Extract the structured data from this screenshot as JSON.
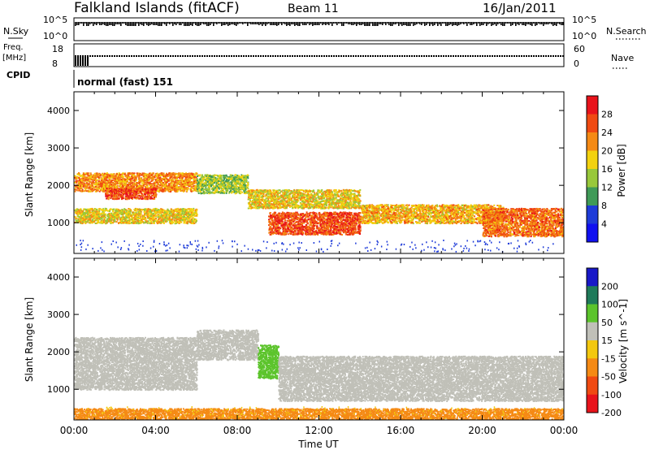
{
  "header": {
    "station": "Falkland Islands (fitACF)",
    "beam": "Beam 11",
    "date": "16/Jan/2011"
  },
  "panels": {
    "nsky": {
      "left_label": "N.Sky",
      "right_label": "N.Search",
      "left_ticks": [
        "10^5",
        "10^0"
      ],
      "right_ticks": [
        "10^5",
        "10^0"
      ]
    },
    "freq": {
      "left_label_1": "Freq.",
      "left_label_2": "[MHz]",
      "right_label": "Nave",
      "left_ticks": [
        "18",
        "8"
      ],
      "right_ticks": [
        "60",
        "0"
      ]
    },
    "cpid": {
      "label": "CPID",
      "text": "normal (fast) 151"
    }
  },
  "chart_data": [
    {
      "type": "heatmap",
      "name": "power",
      "xlabel": "",
      "ylabel": "Slant Range [km]",
      "xlim": [
        "00:00",
        "24:00"
      ],
      "ylim": [
        180,
        4500
      ],
      "yticks": [
        1000,
        2000,
        3000,
        4000
      ],
      "colorbar": {
        "label": "Power [dB]",
        "ticks": [
          28,
          24,
          20,
          16,
          12,
          8,
          4
        ],
        "colors": [
          "#e8131b",
          "#f04a12",
          "#f58a14",
          "#f3d20f",
          "#98c83a",
          "#3f9a57",
          "#1e3bd8",
          "#1010f0"
        ]
      },
      "bands": [
        {
          "time_start": "00:00",
          "time_end": "06:00",
          "range_start": 1850,
          "range_end": 2350,
          "power_db": 22
        },
        {
          "time_start": "01:30",
          "time_end": "04:00",
          "range_start": 1650,
          "range_end": 1950,
          "power_db": 26
        },
        {
          "time_start": "00:00",
          "time_end": "06:00",
          "range_start": 1000,
          "range_end": 1400,
          "power_db": 18
        },
        {
          "time_start": "06:00",
          "time_end": "08:30",
          "range_start": 1800,
          "range_end": 2300,
          "power_db": 14
        },
        {
          "time_start": "08:30",
          "time_end": "14:00",
          "range_start": 1400,
          "range_end": 1900,
          "power_db": 18
        },
        {
          "time_start": "09:30",
          "time_end": "14:00",
          "range_start": 700,
          "range_end": 1300,
          "power_db": 26
        },
        {
          "time_start": "14:00",
          "time_end": "21:00",
          "range_start": 1000,
          "range_end": 1500,
          "power_db": 20
        },
        {
          "time_start": "20:00",
          "time_end": "24:00",
          "range_start": 650,
          "range_end": 1400,
          "power_db": 24
        }
      ]
    },
    {
      "type": "heatmap",
      "name": "velocity",
      "xlabel": "Time UT",
      "ylabel": "Slant Range [km]",
      "xlim": [
        "00:00",
        "24:00"
      ],
      "ylim": [
        180,
        4500
      ],
      "xticks": [
        "00:00",
        "04:00",
        "08:00",
        "12:00",
        "16:00",
        "20:00",
        "00:00"
      ],
      "yticks": [
        1000,
        2000,
        3000,
        4000
      ],
      "colorbar": {
        "label": "Velocity [m s^-1]",
        "ticks": [
          200,
          100,
          50,
          15,
          -15,
          -50,
          -100,
          -200
        ],
        "colors": [
          "#1818c8",
          "#1f7a5a",
          "#5cc42c",
          "#c0c0b8",
          "#f3c80f",
          "#f58a14",
          "#f04a12",
          "#e8131b"
        ]
      },
      "bands": [
        {
          "time_start": "00:00",
          "time_end": "06:00",
          "range_start": 1000,
          "range_end": 2400,
          "velocity": 0
        },
        {
          "time_start": "06:00",
          "time_end": "09:00",
          "range_start": 1800,
          "range_end": 2600,
          "velocity": 0
        },
        {
          "time_start": "09:00",
          "time_end": "10:00",
          "range_start": 1300,
          "range_end": 2200,
          "velocity": 60
        },
        {
          "time_start": "10:00",
          "time_end": "24:00",
          "range_start": 700,
          "range_end": 1900,
          "velocity": 0
        },
        {
          "time_start": "00:00",
          "time_end": "24:00",
          "range_start": 180,
          "range_end": 500,
          "velocity": -50
        }
      ]
    }
  ]
}
